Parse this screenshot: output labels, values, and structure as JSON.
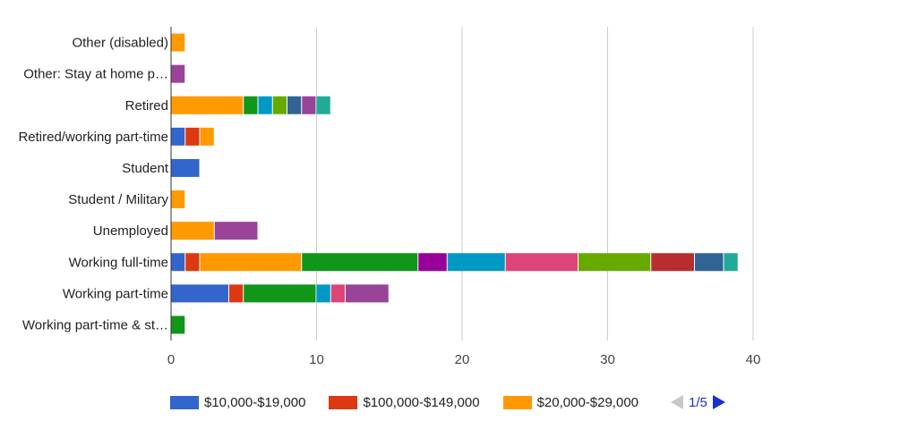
{
  "chart_data": {
    "type": "bar",
    "orientation": "horizontal",
    "stacked": true,
    "categories": [
      "Other (disabled)",
      "Other: Stay at home p…",
      "Retired",
      "Retired/working part-time",
      "Student",
      "Student / Military",
      "Unemployed",
      "Working full-time",
      "Working part-time",
      "Working part-time & st…"
    ],
    "series": [
      {
        "name": "$10,000-$19,000",
        "color": "#3366cc",
        "values": [
          0,
          0,
          0,
          1,
          2,
          0,
          0,
          1,
          4,
          0
        ]
      },
      {
        "name": "$100,000-$149,000",
        "color": "#dc3912",
        "values": [
          0,
          0,
          0,
          1,
          0,
          0,
          0,
          1,
          1,
          0
        ]
      },
      {
        "name": "$20,000-$29,000",
        "color": "#ff9900",
        "values": [
          1,
          0,
          5,
          1,
          0,
          1,
          3,
          7,
          0,
          0
        ]
      },
      {
        "name": "",
        "color": "#109618",
        "values": [
          0,
          0,
          1,
          0,
          0,
          0,
          0,
          8,
          5,
          1
        ]
      },
      {
        "name": "",
        "color": "#990099",
        "values": [
          0,
          0,
          0,
          0,
          0,
          0,
          0,
          2,
          0,
          0
        ]
      },
      {
        "name": "",
        "color": "#0099c6",
        "values": [
          0,
          0,
          1,
          0,
          0,
          0,
          0,
          4,
          1,
          0
        ]
      },
      {
        "name": "",
        "color": "#dd4477",
        "values": [
          0,
          0,
          0,
          0,
          0,
          0,
          0,
          5,
          1,
          0
        ]
      },
      {
        "name": "",
        "color": "#66aa00",
        "values": [
          0,
          0,
          1,
          0,
          0,
          0,
          0,
          5,
          0,
          0
        ]
      },
      {
        "name": "",
        "color": "#b82e2e",
        "values": [
          0,
          0,
          0,
          0,
          0,
          0,
          0,
          3,
          0,
          0
        ]
      },
      {
        "name": "",
        "color": "#316395",
        "values": [
          0,
          0,
          1,
          0,
          0,
          0,
          0,
          2,
          0,
          0
        ]
      },
      {
        "name": "",
        "color": "#994499",
        "values": [
          0,
          1,
          1,
          0,
          0,
          0,
          3,
          0,
          3,
          0
        ]
      },
      {
        "name": "",
        "color": "#22aa99",
        "values": [
          0,
          0,
          1,
          0,
          0,
          0,
          0,
          1,
          0,
          0
        ]
      }
    ],
    "xticks": [
      0,
      10,
      20,
      30,
      40
    ],
    "xlim": [
      0,
      40
    ],
    "grid": true,
    "legend_position": "bottom",
    "title": "",
    "xlabel": "",
    "ylabel": ""
  },
  "legend_pager": {
    "text": "1/5"
  }
}
